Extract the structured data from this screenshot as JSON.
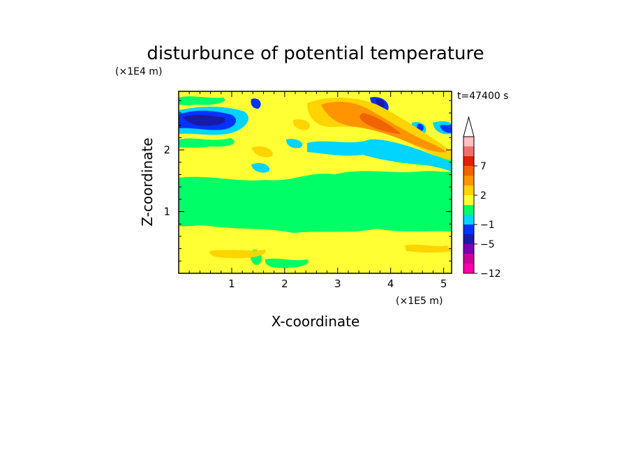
{
  "chart_data": {
    "type": "heatmap",
    "title": "disturbunce of potential temperature",
    "time_label": "t=47400 s",
    "xlabel": "X-coordinate",
    "ylabel": "Z-coordinate",
    "x_unit": "(×1E5 m)",
    "y_unit": "(×1E4 m)",
    "xlim": [
      0,
      5.15
    ],
    "ylim": [
      0,
      2.95
    ],
    "xticks": [
      1,
      2,
      3,
      4,
      5
    ],
    "yticks": [
      1,
      2
    ],
    "colorbar": {
      "labels": [
        {
          "value": -12,
          "text": "−12"
        },
        {
          "value": -5,
          "text": "−5"
        },
        {
          "value": -1,
          "text": "−1"
        },
        {
          "value": 2,
          "text": "2"
        },
        {
          "value": 7,
          "text": "7"
        }
      ],
      "extend": "max",
      "colors": [
        "#ff00aa",
        "#cc0099",
        "#7a00b0",
        "#1a1aa8",
        "#0033ff",
        "#00d4ff",
        "#00ff66",
        "#ffff33",
        "#ffd400",
        "#ff9400",
        "#f06400",
        "#e02000",
        "#f07070",
        "#ffbfbf"
      ]
    },
    "regions": [
      {
        "name": "background",
        "level": "0",
        "color": "#ffff33"
      },
      {
        "name": "mid-band",
        "level": "-0.5",
        "color": "#00ff66"
      },
      {
        "name": "warm-streak",
        "level": "2 to 7",
        "color": "#ff9400"
      },
      {
        "name": "cold-patch",
        "level": "-5 to -3",
        "color": "#1a1aa8"
      }
    ]
  }
}
